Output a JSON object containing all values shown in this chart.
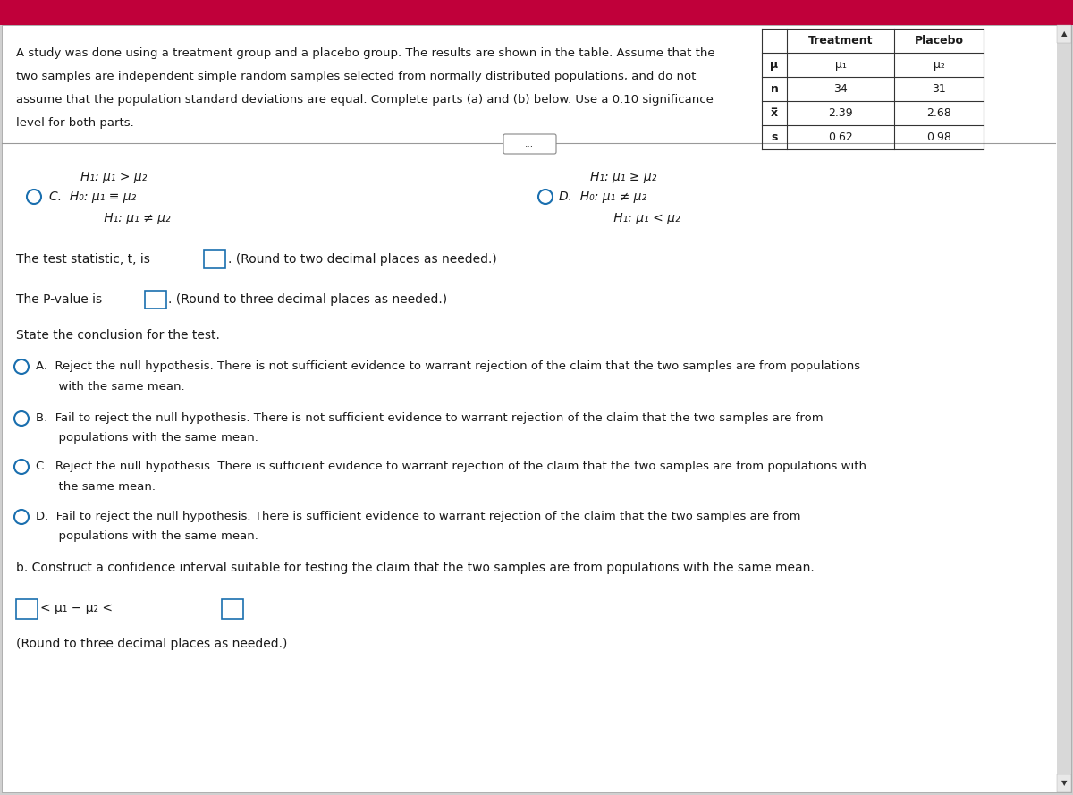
{
  "bg_color": "#d0d0d0",
  "header_bg": "#c0003a",
  "white": "#ffffff",
  "text_color": "#1a1a1a",
  "blue_circle": "#1a6faf",
  "table_header_row": [
    "",
    "Treatment",
    "Placebo"
  ],
  "table_rows": [
    [
      "μ",
      "μ₁",
      "μ₂"
    ],
    [
      "n",
      "34",
      "31"
    ],
    [
      "x̅",
      "2.39",
      "2.68"
    ],
    [
      "s",
      "0.62",
      "0.98"
    ]
  ],
  "intro_lines": [
    "A study was done using a treatment group and a placebo group. The results are shown in the table. Assume that the",
    "two samples are independent simple random samples selected from normally distributed populations, and do not",
    "assume that the population standard deviations are equal. Complete parts (a) and (b) below. Use a 0.10 significance",
    "level for both parts."
  ],
  "opt_c_line1": "H₁: μ₁ > μ₂",
  "opt_c_label": "C.  H₀: μ₁ ≡ μ₂",
  "opt_c_line3": "      H₁: μ₁ ≠ μ₂",
  "opt_d_line1": "H₁: μ₁ ≥ μ₂",
  "opt_d_label": "D.  H₀: μ₁ ≠ μ₂",
  "opt_d_line3": "      H₁: μ₁ < μ₂",
  "test_stat_prefix": "The test statistic, t, is",
  "test_stat_suffix": ". (Round to two decimal places as needed.)",
  "pvalue_prefix": "The P-value is",
  "pvalue_suffix": ". (Round to three decimal places as needed.)",
  "conclusion_header": "State the conclusion for the test.",
  "ans_A_line1": "A.  Reject the null hypothesis. There is not sufficient evidence to warrant rejection of the claim that the two samples are from populations",
  "ans_A_line2": "      with the same mean.",
  "ans_B_line1": "B.  Fail to reject the null hypothesis. There is not sufficient evidence to warrant rejection of the claim that the two samples are from",
  "ans_B_line2": "      populations with the same mean.",
  "ans_C_line1": "C.  Reject the null hypothesis. There is sufficient evidence to warrant rejection of the claim that the two samples are from populations with",
  "ans_C_line2": "      the same mean.",
  "ans_D_line1": "D.  Fail to reject the null hypothesis. There is sufficient evidence to warrant rejection of the claim that the two samples are from",
  "ans_D_line2": "      populations with the same mean.",
  "part_b": "b. Construct a confidence interval suitable for testing the claim that the two samples are from populations with the same mean.",
  "ci_middle": "< μ₁ − μ₂ <",
  "round3": "(Round to three decimal places as needed.)"
}
